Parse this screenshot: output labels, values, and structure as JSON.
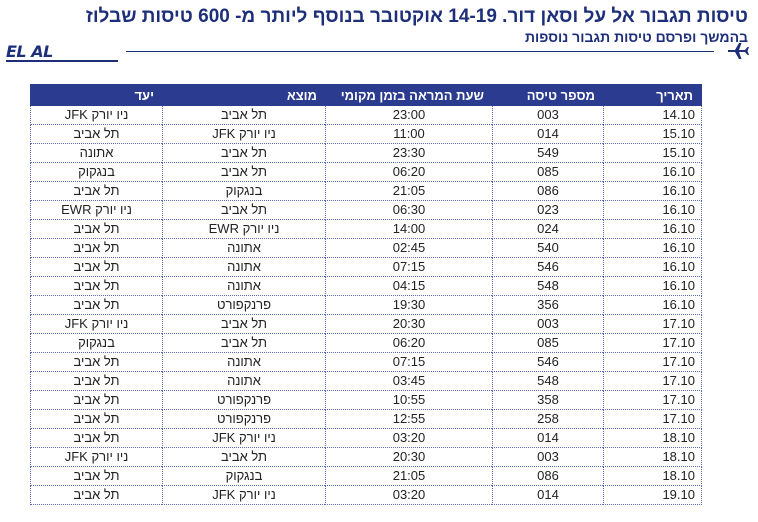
{
  "header": {
    "title": "טיסות תגבור אל על וסאן דור. 14-19 אוקטובר בנוסף ליותר מ-  600 טיסות שבלוז",
    "subtitle": "בהמשך ופרסם טיסות תגבור נוספות",
    "logo_text": "EL AL"
  },
  "colors": {
    "brand": "#1e2f7a",
    "header_bg": "#2b3b8f"
  },
  "table": {
    "columns": [
      "תאריך",
      "מספר טיסה",
      "שעת המראה בזמן מקומי",
      "מוצא",
      "יעד"
    ],
    "rows": [
      {
        "date": "14.10",
        "flight": "003",
        "time": "23:00",
        "origin": "תל אביב",
        "dest": "ניו יורק JFK"
      },
      {
        "date": "15.10",
        "flight": "014",
        "time": "11:00",
        "origin": "ניו יורק JFK",
        "dest": "תל אביב"
      },
      {
        "date": "15.10",
        "flight": "549",
        "time": "23:30",
        "origin": "תל אביב",
        "dest": "אתונה"
      },
      {
        "date": "16.10",
        "flight": "085",
        "time": "06:20",
        "origin": "תל אביב",
        "dest": "בנגקוק"
      },
      {
        "date": "16.10",
        "flight": "086",
        "time": "21:05",
        "origin": "בנגקוק",
        "dest": "תל אביב"
      },
      {
        "date": "16.10",
        "flight": "023",
        "time": "06:30",
        "origin": "תל אביב",
        "dest": "ניו יורק EWR"
      },
      {
        "date": "16.10",
        "flight": "024",
        "time": "14:00",
        "origin": "ניו יורק EWR",
        "dest": "תל אביב"
      },
      {
        "date": "16.10",
        "flight": "540",
        "time": "02:45",
        "origin": "אתונה",
        "dest": "תל אביב"
      },
      {
        "date": "16.10",
        "flight": "546",
        "time": "07:15",
        "origin": "אתונה",
        "dest": "תל אביב"
      },
      {
        "date": "16.10",
        "flight": "548",
        "time": "04:15",
        "origin": "אתונה",
        "dest": "תל אביב"
      },
      {
        "date": "16.10",
        "flight": "356",
        "time": "19:30",
        "origin": "פרנקפורט",
        "dest": "תל אביב"
      },
      {
        "date": "17.10",
        "flight": "003",
        "time": "20:30",
        "origin": "תל אביב",
        "dest": "ניו יורק JFK"
      },
      {
        "date": "17.10",
        "flight": "085",
        "time": "06:20",
        "origin": "תל אביב",
        "dest": "בנגקוק"
      },
      {
        "date": "17.10",
        "flight": "546",
        "time": "07:15",
        "origin": "אתונה",
        "dest": "תל אביב"
      },
      {
        "date": "17.10",
        "flight": "548",
        "time": "03:45",
        "origin": "אתונה",
        "dest": "תל אביב"
      },
      {
        "date": "17.10",
        "flight": "358",
        "time": "10:55",
        "origin": "פרנקפורט",
        "dest": "תל אביב"
      },
      {
        "date": "17.10",
        "flight": "258",
        "time": "12:55",
        "origin": "פרנקפורט",
        "dest": "תל אביב"
      },
      {
        "date": "18.10",
        "flight": "014",
        "time": "03:20",
        "origin": "ניו יורק JFK",
        "dest": "תל אביב"
      },
      {
        "date": "18.10",
        "flight": "003",
        "time": "20:30",
        "origin": "תל אביב",
        "dest": "ניו יורק JFK"
      },
      {
        "date": "18.10",
        "flight": "086",
        "time": "21:05",
        "origin": "בנגקוק",
        "dest": "תל אביב"
      },
      {
        "date": "19.10",
        "flight": "014",
        "time": "03:20",
        "origin": "ניו יורק JFK",
        "dest": "תל אביב"
      }
    ]
  }
}
